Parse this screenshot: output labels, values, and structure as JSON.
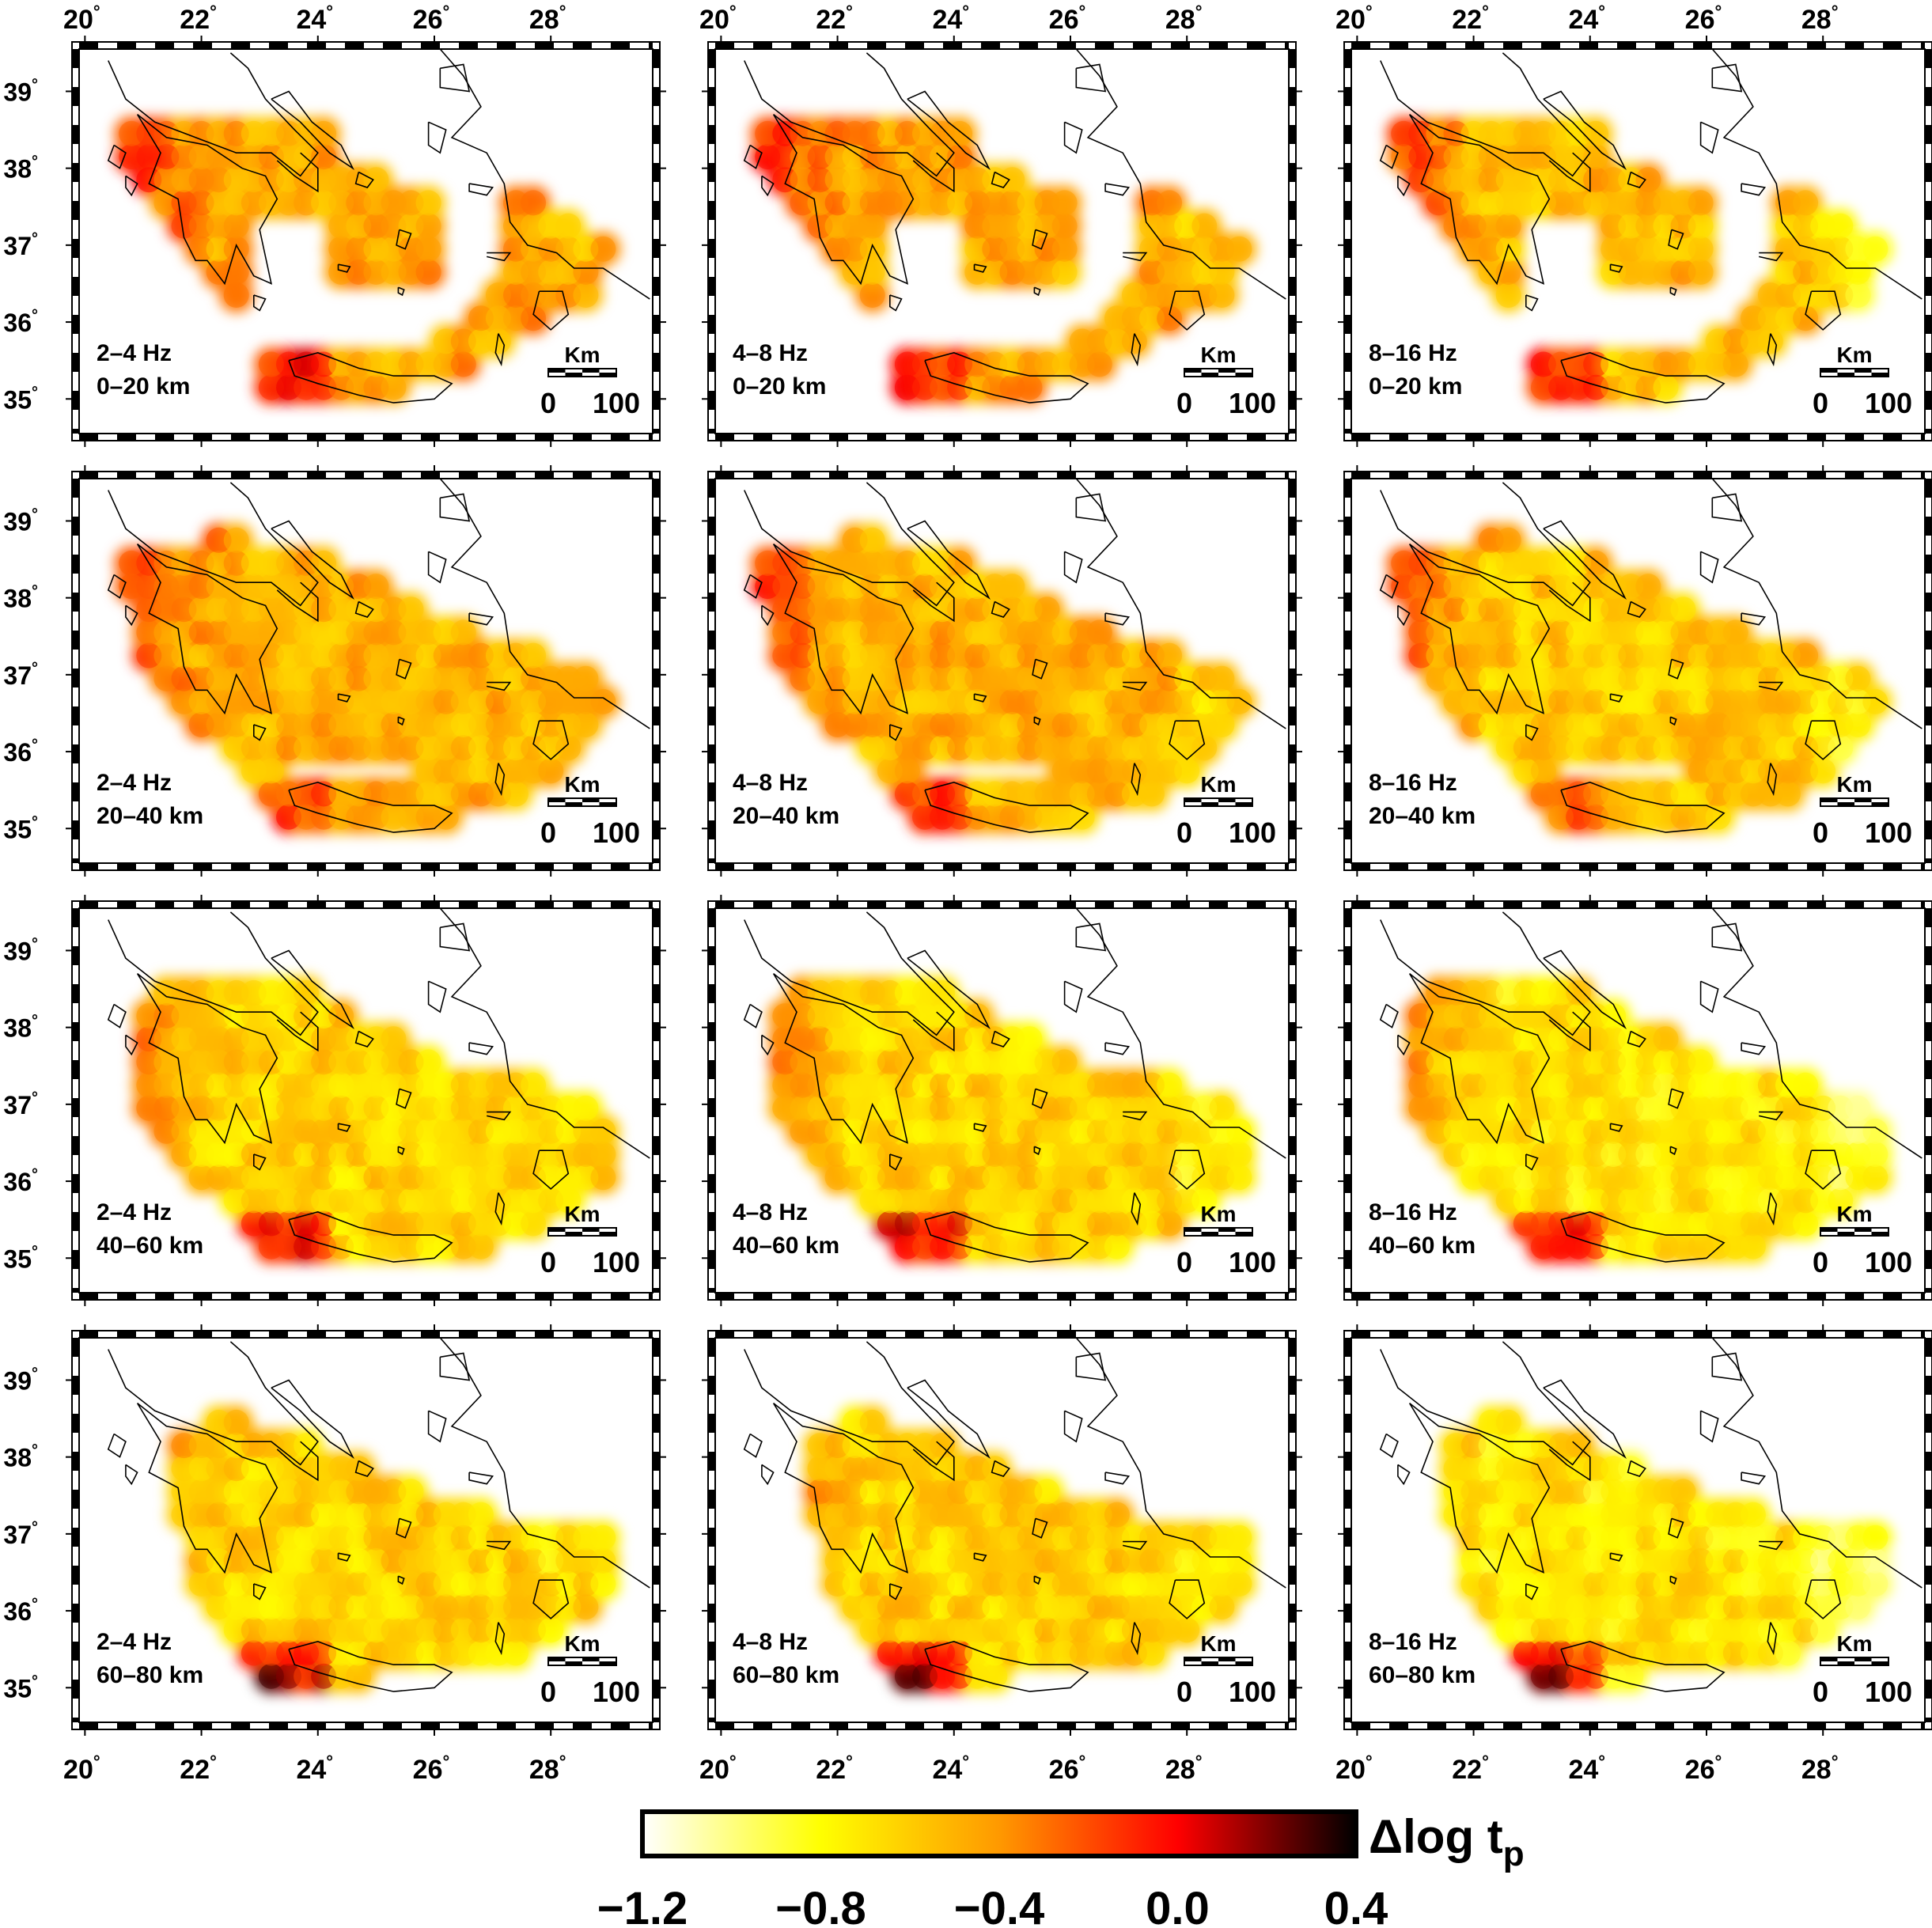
{
  "degree_symbol": "°",
  "x_axis_ticks": [
    "20",
    "22",
    "24",
    "26",
    "28"
  ],
  "y_axis_ticks": [
    "39",
    "38",
    "37",
    "36",
    "35"
  ],
  "scale_bar": {
    "unit": "Km",
    "left": "0",
    "right": "100"
  },
  "panels": [
    {
      "freq": "2–4 Hz",
      "depth": "0–20 km"
    },
    {
      "freq": "4–8 Hz",
      "depth": "0–20 km"
    },
    {
      "freq": "8–16 Hz",
      "depth": "0–20 km"
    },
    {
      "freq": "2–4 Hz",
      "depth": "20–40 km"
    },
    {
      "freq": "4–8 Hz",
      "depth": "20–40 km"
    },
    {
      "freq": "8–16 Hz",
      "depth": "20–40 km"
    },
    {
      "freq": "2–4 Hz",
      "depth": "40–60 km"
    },
    {
      "freq": "4–8 Hz",
      "depth": "40–60 km"
    },
    {
      "freq": "8–16 Hz",
      "depth": "40–60 km"
    },
    {
      "freq": "2–4 Hz",
      "depth": "60–80 km"
    },
    {
      "freq": "4–8 Hz",
      "depth": "60–80 km"
    },
    {
      "freq": "8–16 Hz",
      "depth": "60–80 km"
    }
  ],
  "colorbar": {
    "label": "Δlog t",
    "label_subscript": "p",
    "ticks": [
      "−1.2",
      "−0.8",
      "−0.4",
      "0.0",
      "0.4"
    ],
    "colors": [
      "#ffffff",
      "#ffff00",
      "#ff9900",
      "#ff0000",
      "#660000",
      "#000000"
    ]
  }
}
